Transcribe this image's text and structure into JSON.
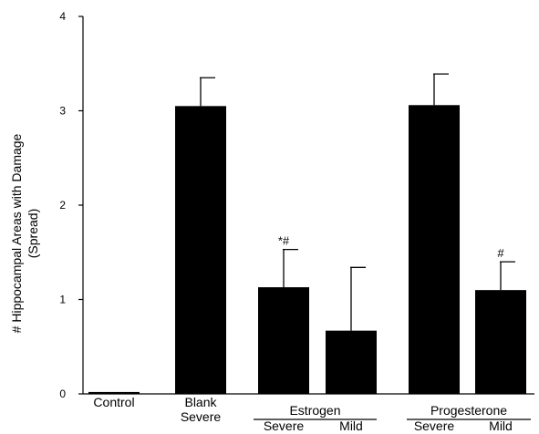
{
  "chart_data": {
    "type": "bar",
    "title": "",
    "xlabel": "",
    "ylabel": "# Hippocampal Areas with Damage\n(Spread)",
    "ylim": [
      0,
      4
    ],
    "yticks": [
      0,
      1,
      2,
      3,
      4
    ],
    "grid": false,
    "legend": "none",
    "bar_color": "#000000",
    "bars": [
      {
        "name": "Control",
        "label_lines": [
          "Control"
        ],
        "value": 0.02,
        "error": 0,
        "annotation": ""
      },
      {
        "name": "Blank Severe",
        "label_lines": [
          "Blank",
          "Severe"
        ],
        "value": 3.05,
        "error": 0.3,
        "annotation": ""
      },
      {
        "name": "Estrogen Severe",
        "label_lines": [
          "Severe"
        ],
        "group": "Estrogen",
        "value": 1.13,
        "error": 0.4,
        "annotation": "*#"
      },
      {
        "name": "Estrogen Mild",
        "label_lines": [
          "Mild"
        ],
        "group": "Estrogen",
        "value": 0.67,
        "error": 0.67,
        "annotation": ""
      },
      {
        "name": "Progesterone Severe",
        "label_lines": [
          "Severe"
        ],
        "group": "Progesterone",
        "value": 3.06,
        "error": 0.33,
        "annotation": ""
      },
      {
        "name": "Progesterone Mild",
        "label_lines": [
          "Mild"
        ],
        "group": "Progesterone",
        "value": 1.1,
        "error": 0.3,
        "annotation": "#"
      }
    ],
    "groups": [
      "Estrogen",
      "Progesterone"
    ]
  }
}
